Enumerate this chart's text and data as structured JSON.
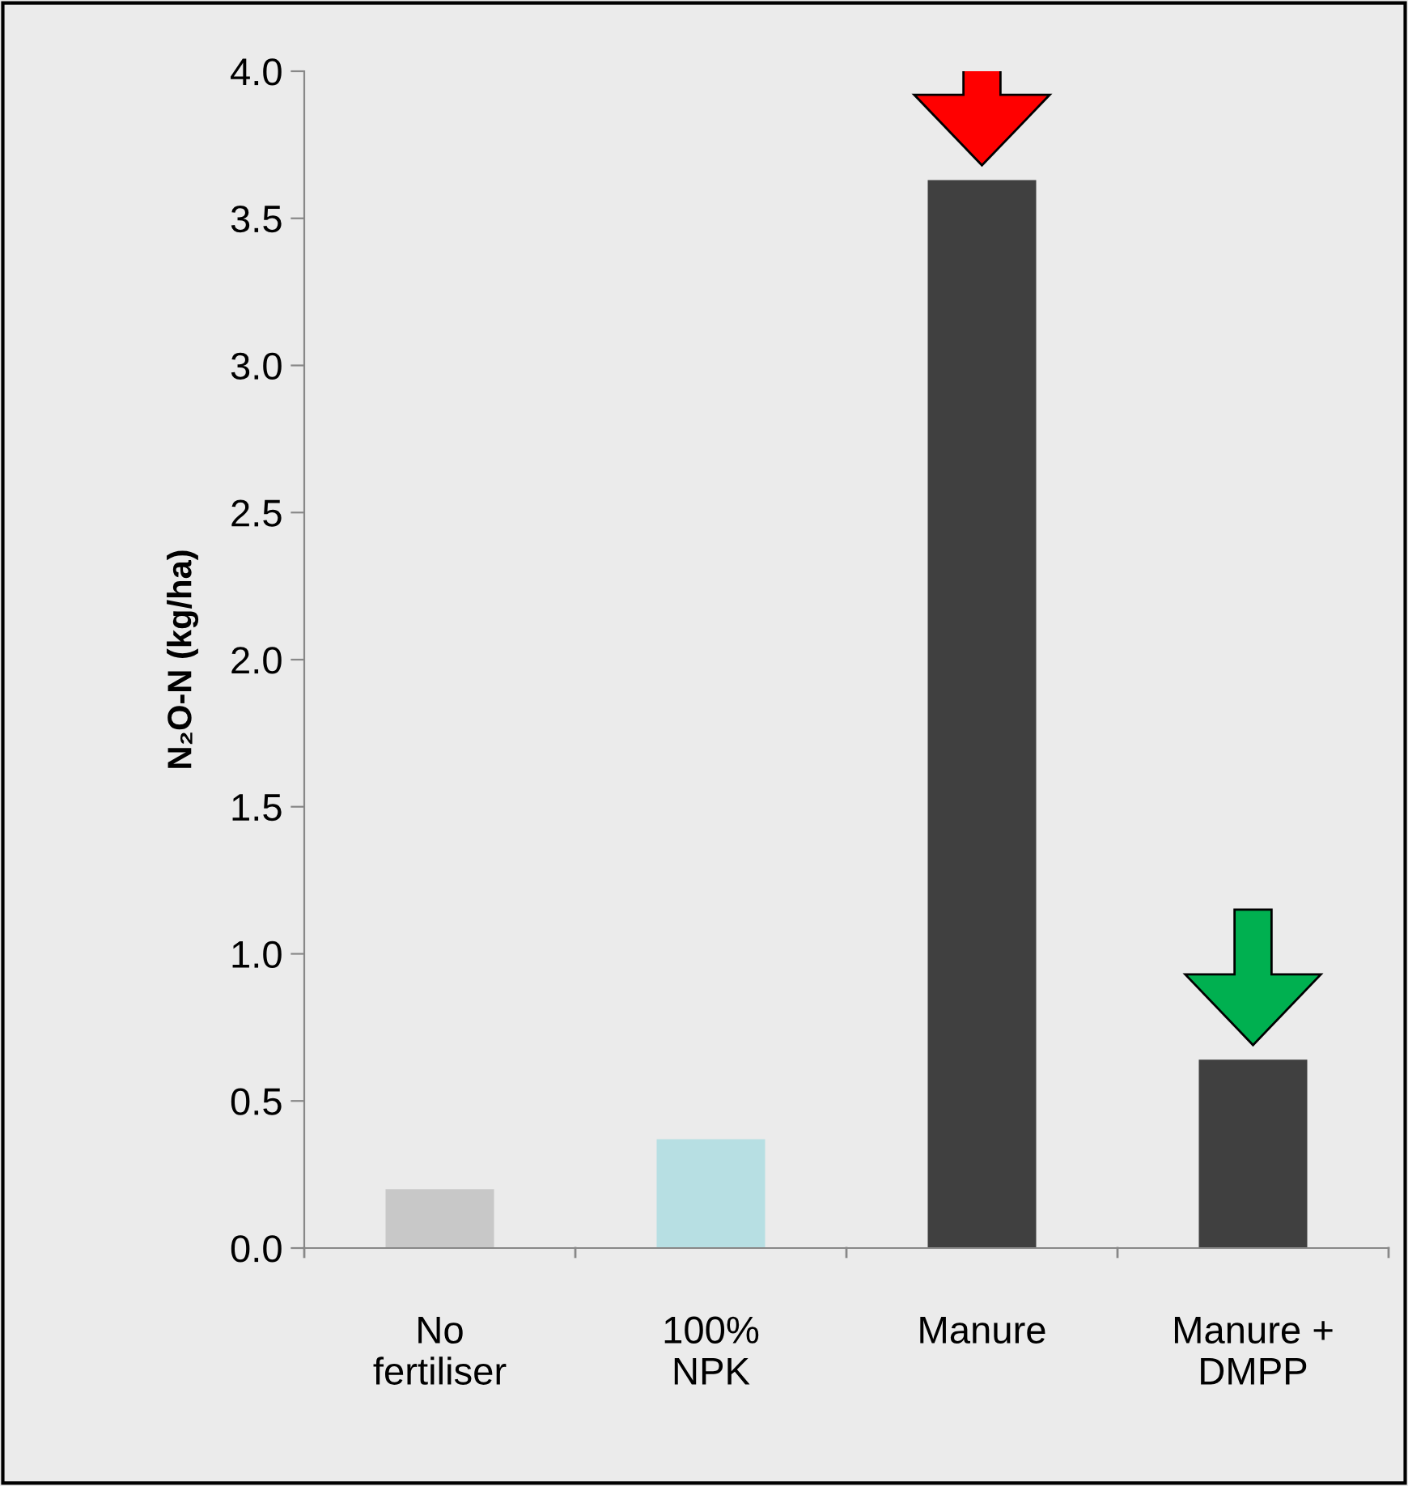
{
  "chart_data": {
    "type": "bar",
    "ylabel": "N₂O-N (kg/ha)",
    "categories": [
      "No\nfertiliser",
      "100%\nNPK",
      "Manure",
      "Manure +\nDMPP"
    ],
    "values": [
      0.2,
      0.37,
      3.63,
      0.64
    ],
    "colors": [
      "#c8c8c8",
      "#b7dfe3",
      "#404040",
      "#404040"
    ],
    "ylim": [
      0,
      4
    ],
    "yticks": [
      {
        "value": 0,
        "label": "0.0"
      },
      {
        "value": 0.5,
        "label": "0.5"
      },
      {
        "value": 1,
        "label": "1.0"
      },
      {
        "value": 1.5,
        "label": "1.5"
      },
      {
        "value": 2,
        "label": "2.0"
      },
      {
        "value": 2.5,
        "label": "2.5"
      },
      {
        "value": 3,
        "label": "3.0"
      },
      {
        "value": 3.5,
        "label": "3.5"
      },
      {
        "value": 4,
        "label": "4.0"
      }
    ],
    "grid": false,
    "legend": false
  }
}
